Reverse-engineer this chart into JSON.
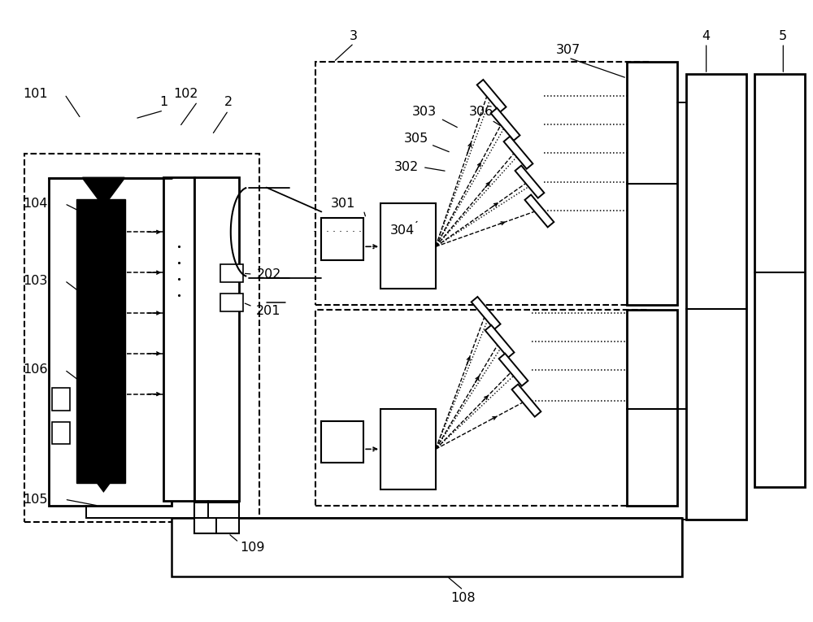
{
  "fig_width": 10.0,
  "fig_height": 7.65
}
